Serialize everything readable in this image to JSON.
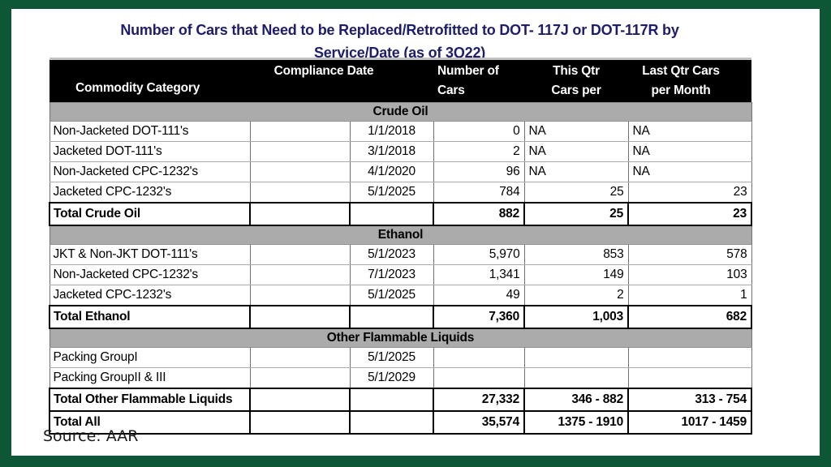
{
  "title": {
    "line1": "Number of Cars that Need to be Replaced/Retrofitted to DOT- 117J or DOT-117R by",
    "line2": "Service/Date (as of 3Q22)"
  },
  "table": {
    "header": {
      "commodity": "Commodity Category",
      "compliance": "Compliance Date",
      "number_of_cars": "Number of\nCars",
      "this_qtr": "This Qtr\nCars per",
      "last_qtr": "Last Qtr Cars\nper Month"
    },
    "sections": [
      {
        "name": "Crude Oil",
        "rows": [
          {
            "category": "Non-Jacketed DOT-111's",
            "date": "1/1/2018",
            "cars": "0",
            "this_qtr": "NA",
            "last_qtr": "NA"
          },
          {
            "category": "Jacketed DOT-111's",
            "date": "3/1/2018",
            "cars": "2",
            "this_qtr": "NA",
            "last_qtr": "NA"
          },
          {
            "category": "Non-Jacketed CPC-1232's",
            "date": "4/1/2020",
            "cars": "96",
            "this_qtr": "NA",
            "last_qtr": "NA"
          },
          {
            "category": "Jacketed CPC-1232's",
            "date": "5/1/2025",
            "cars": "784",
            "this_qtr": "25",
            "last_qtr": "23"
          }
        ],
        "total": {
          "category": "Total Crude Oil",
          "date": "",
          "cars": "882",
          "this_qtr": "25",
          "last_qtr": "23"
        }
      },
      {
        "name": "Ethanol",
        "rows": [
          {
            "category": "JKT & Non-JKT DOT-111's",
            "date": "5/1/2023",
            "cars": "5,970",
            "this_qtr": "853",
            "last_qtr": "578"
          },
          {
            "category": "Non-Jacketed CPC-1232's",
            "date": "7/1/2023",
            "cars": "1,341",
            "this_qtr": "149",
            "last_qtr": "103"
          },
          {
            "category": "Jacketed CPC-1232's",
            "date": "5/1/2025",
            "cars": "49",
            "this_qtr": "2",
            "last_qtr": "1"
          }
        ],
        "total": {
          "category": "Total Ethanol",
          "date": "",
          "cars": "7,360",
          "this_qtr": "1,003",
          "last_qtr": "682"
        }
      },
      {
        "name": "Other Flammable Liquids",
        "rows": [
          {
            "category": "Packing GroupI",
            "date": "5/1/2025",
            "cars": "",
            "this_qtr": "",
            "last_qtr": ""
          },
          {
            "category": "Packing GroupII & III",
            "date": "5/1/2029",
            "cars": "",
            "this_qtr": "",
            "last_qtr": ""
          }
        ],
        "total": {
          "category": "Total Other Flammable Liquids",
          "date": "",
          "cars": "27,332",
          "this_qtr": "346 - 882",
          "last_qtr": "313 - 754"
        }
      }
    ],
    "grand_total": {
      "category": "Total All",
      "date": "",
      "cars": "35,574",
      "this_qtr": "1375 - 1910",
      "last_qtr": "1017 - 1459"
    }
  },
  "source": "Source: AAR",
  "colors": {
    "frame_green": "#0d5636",
    "title_navy": "#1d1d6b",
    "header_bg": "#000000",
    "header_text": "#ffffff",
    "section_band_gray": "#ababab",
    "total_border": "#000000"
  }
}
